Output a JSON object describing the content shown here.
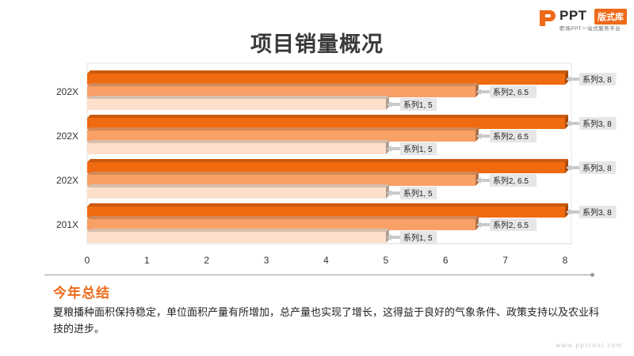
{
  "logo": {
    "name": "PPT",
    "badge": "版式库",
    "tagline": "职场PPT一站式服务平台"
  },
  "title": "项目销量概况",
  "chart_data": {
    "type": "bar",
    "orientation": "horizontal",
    "title": "项目销量概况",
    "categories": [
      "202X",
      "202X",
      "202X",
      "201X"
    ],
    "series": [
      {
        "name": "系列1",
        "values": [
          5,
          5,
          5,
          5
        ],
        "color": "#fde0cc"
      },
      {
        "name": "系列2",
        "values": [
          6.5,
          6.5,
          6.5,
          6.5
        ],
        "color": "#f9a066"
      },
      {
        "name": "系列3",
        "values": [
          8,
          8,
          8,
          8
        ],
        "color": "#f06a0f"
      }
    ],
    "xlim": [
      0,
      8
    ],
    "xticks": [
      0,
      1,
      2,
      3,
      4,
      5,
      6,
      7,
      8
    ],
    "data_labels": true,
    "grid": false,
    "legend": "none"
  },
  "summary": {
    "title": "今年总结",
    "body": "夏粮播种面积保持稳定，单位面积产量有所增加，总产量也实现了增长，这得益于良好的气象条件、政策支持以及农业科技的进步。"
  },
  "watermark": "www.pptcool.com"
}
